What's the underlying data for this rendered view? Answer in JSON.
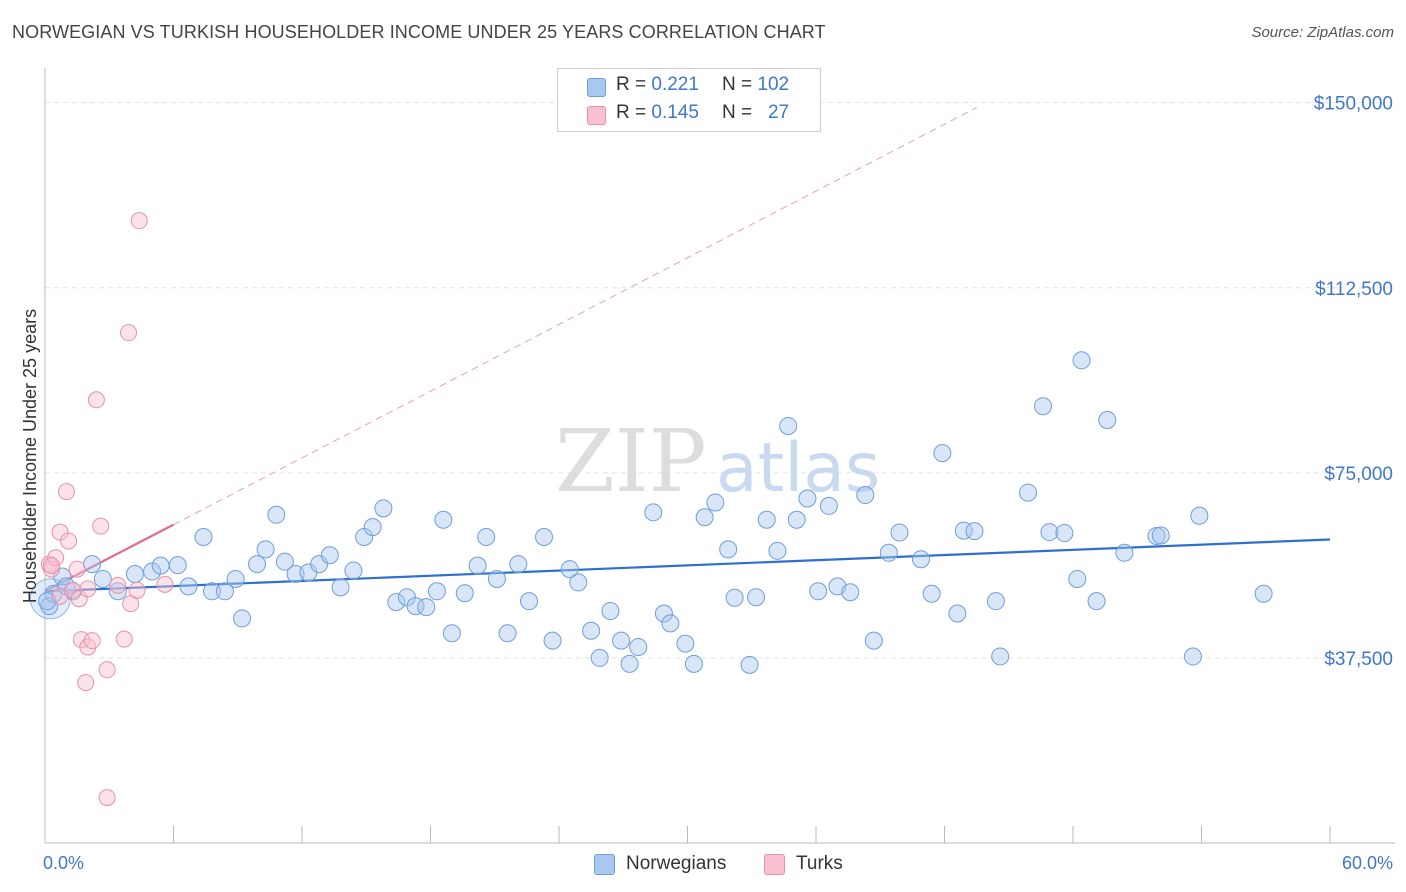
{
  "title": "NORWEGIAN VS TURKISH HOUSEHOLDER INCOME UNDER 25 YEARS CORRELATION CHART",
  "source": "Source: ZipAtlas.com",
  "watermark": {
    "zip": "ZIP",
    "atlas": "atlas"
  },
  "legend": {
    "norwegians": {
      "r_label": "R =",
      "r_value": "0.221",
      "n_label": "N =",
      "n_value": "102",
      "color": "#a8c8f0",
      "stroke": "#6d9fdc"
    },
    "turks": {
      "r_label": "R =",
      "r_value": "0.145",
      "n_label": "N =",
      "n_value": "27",
      "color": "#f8c0d0",
      "stroke": "#e890aa"
    }
  },
  "bottom_legend": {
    "norwegians": "Norwegians",
    "turks": "Turks"
  },
  "chart_data": {
    "type": "scatter",
    "title": "NORWEGIAN VS TURKISH HOUSEHOLDER INCOME UNDER 25 YEARS CORRELATION CHART",
    "xlabel": "",
    "ylabel": "Householder Income Under 25 years",
    "xlim": [
      0,
      60
    ],
    "ylim": [
      0,
      155000
    ],
    "x_tick_labels": [
      "0.0%",
      "60.0%"
    ],
    "y_ticks": [
      37500,
      75000,
      112500,
      150000
    ],
    "y_tick_labels": [
      "$37,500",
      "$75,000",
      "$112,500",
      "$150,000"
    ],
    "series": [
      {
        "name": "Norwegians",
        "color": "#6d9fdc",
        "points": [
          [
            0.2,
            48000
          ],
          [
            0.4,
            50500
          ],
          [
            0.8,
            54000
          ],
          [
            1.0,
            52000
          ],
          [
            1.3,
            51000
          ],
          [
            2.2,
            56500
          ],
          [
            2.7,
            53500
          ],
          [
            3.4,
            51000
          ],
          [
            4.2,
            54500
          ],
          [
            5.0,
            55000
          ],
          [
            5.4,
            56200
          ],
          [
            6.2,
            56300
          ],
          [
            6.7,
            52000
          ],
          [
            7.4,
            62000
          ],
          [
            7.8,
            51000
          ],
          [
            8.4,
            51000
          ],
          [
            8.9,
            53500
          ],
          [
            9.2,
            45500
          ],
          [
            9.9,
            56500
          ],
          [
            10.3,
            59500
          ],
          [
            10.8,
            66500
          ],
          [
            11.2,
            57000
          ],
          [
            11.7,
            54500
          ],
          [
            12.3,
            54800
          ],
          [
            12.8,
            56500
          ],
          [
            13.3,
            58300
          ],
          [
            13.8,
            51800
          ],
          [
            14.4,
            55200
          ],
          [
            14.9,
            62000
          ],
          [
            15.3,
            64000
          ],
          [
            15.8,
            67800
          ],
          [
            16.4,
            48800
          ],
          [
            16.9,
            49800
          ],
          [
            17.3,
            48000
          ],
          [
            17.8,
            47800
          ],
          [
            18.3,
            51000
          ],
          [
            18.6,
            65500
          ],
          [
            19.0,
            42500
          ],
          [
            19.6,
            50600
          ],
          [
            20.2,
            56200
          ],
          [
            20.6,
            62000
          ],
          [
            21.1,
            53500
          ],
          [
            21.6,
            42500
          ],
          [
            22.1,
            56500
          ],
          [
            22.6,
            49000
          ],
          [
            23.3,
            62000
          ],
          [
            23.7,
            41000
          ],
          [
            24.5,
            55500
          ],
          [
            24.9,
            52800
          ],
          [
            25.5,
            43000
          ],
          [
            25.9,
            37500
          ],
          [
            26.4,
            47000
          ],
          [
            26.9,
            41000
          ],
          [
            27.3,
            36300
          ],
          [
            27.7,
            39700
          ],
          [
            28.4,
            67000
          ],
          [
            28.9,
            46500
          ],
          [
            29.2,
            44500
          ],
          [
            29.9,
            40400
          ],
          [
            30.3,
            36300
          ],
          [
            30.8,
            66000
          ],
          [
            31.3,
            69000
          ],
          [
            31.9,
            59500
          ],
          [
            32.2,
            49700
          ],
          [
            32.9,
            36100
          ],
          [
            33.2,
            49800
          ],
          [
            33.7,
            65500
          ],
          [
            34.2,
            59200
          ],
          [
            34.7,
            84500
          ],
          [
            35.1,
            65500
          ],
          [
            35.6,
            69800
          ],
          [
            36.1,
            51000
          ],
          [
            36.6,
            68300
          ],
          [
            37.0,
            52000
          ],
          [
            37.6,
            50800
          ],
          [
            38.3,
            70500
          ],
          [
            38.7,
            41000
          ],
          [
            39.4,
            58800
          ],
          [
            39.9,
            62900
          ],
          [
            40.9,
            57500
          ],
          [
            41.4,
            50500
          ],
          [
            41.9,
            79000
          ],
          [
            42.6,
            46500
          ],
          [
            42.9,
            63300
          ],
          [
            43.4,
            63200
          ],
          [
            44.4,
            49000
          ],
          [
            44.6,
            37800
          ],
          [
            45.9,
            71000
          ],
          [
            46.6,
            88500
          ],
          [
            46.9,
            63000
          ],
          [
            47.6,
            62800
          ],
          [
            48.2,
            53500
          ],
          [
            48.4,
            97800
          ],
          [
            49.1,
            49000
          ],
          [
            49.6,
            85700
          ],
          [
            50.4,
            58800
          ],
          [
            51.9,
            62200
          ],
          [
            52.1,
            62300
          ],
          [
            53.6,
            37800
          ],
          [
            53.9,
            66300
          ],
          [
            56.9,
            50500
          ],
          [
            0.1,
            49000
          ]
        ],
        "trend": {
          "x0": 0,
          "y0": 51000,
          "x1": 60,
          "y1": 61500
        }
      },
      {
        "name": "Turks",
        "color": "#e890aa",
        "points": [
          [
            0.2,
            56500
          ],
          [
            0.3,
            55500
          ],
          [
            0.5,
            57800
          ],
          [
            0.7,
            63000
          ],
          [
            1.0,
            71200
          ],
          [
            1.1,
            61200
          ],
          [
            1.3,
            51200
          ],
          [
            1.5,
            55500
          ],
          [
            1.6,
            49500
          ],
          [
            1.7,
            41200
          ],
          [
            1.9,
            32500
          ],
          [
            2.0,
            39700
          ],
          [
            2.2,
            41000
          ],
          [
            2.4,
            89800
          ],
          [
            2.6,
            64200
          ],
          [
            2.9,
            35100
          ],
          [
            2.9,
            9200
          ],
          [
            3.4,
            52200
          ],
          [
            3.7,
            41300
          ],
          [
            3.9,
            103400
          ],
          [
            4.0,
            48500
          ],
          [
            4.3,
            51200
          ],
          [
            4.4,
            126100
          ],
          [
            5.6,
            52400
          ],
          [
            0.7,
            50000
          ],
          [
            2.0,
            51500
          ],
          [
            0.3,
            56200
          ]
        ],
        "trend": {
          "x0": 0,
          "y0": 51000,
          "x1": 6,
          "y1": 64500
        },
        "trend_ext": {
          "x0": 6,
          "y0": 64500,
          "x1": 43.5,
          "y1": 149000
        }
      }
    ]
  }
}
